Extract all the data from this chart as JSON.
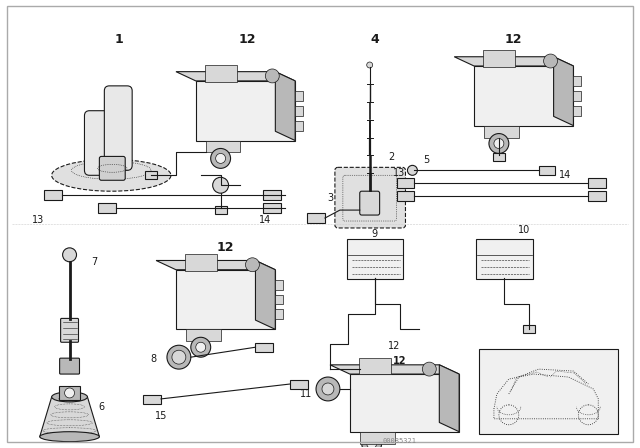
{
  "background_color": "#ffffff",
  "line_color": "#1a1a1a",
  "fill_light": "#f0f0f0",
  "fill_mid": "#d8d8d8",
  "fill_dark": "#b8b8b8",
  "watermark": "00085321",
  "figure_width": 6.4,
  "figure_height": 4.48,
  "dpi": 100
}
